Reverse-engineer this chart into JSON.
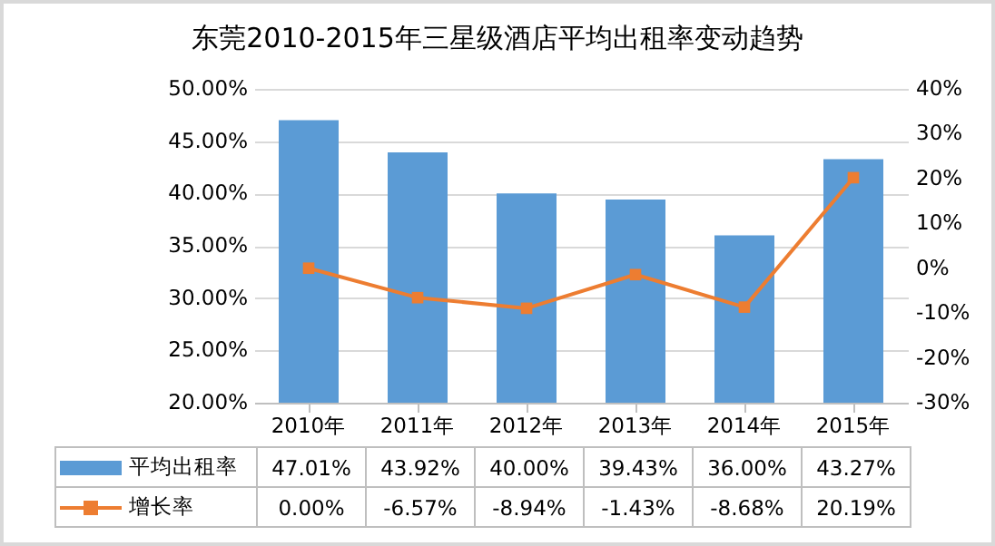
{
  "chart_data": {
    "type": "bar",
    "title": "东莞2010-2015年三星级酒店平均出租率变动趋势",
    "categories": [
      "2010年",
      "2011年",
      "2012年",
      "2013年",
      "2014年",
      "2015年"
    ],
    "series": [
      {
        "name": "平均出租率",
        "color": "#5b9bd5",
        "values": [
          47.01,
          43.92,
          40.0,
          39.43,
          36.0,
          43.27
        ],
        "value_labels": [
          "47.01%",
          "43.92%",
          "40.00%",
          "39.43%",
          "36.00%",
          "43.27%"
        ]
      },
      {
        "name": "增长率",
        "type": "line",
        "axis": "y2",
        "color": "#ed7d31",
        "marker": "square",
        "values": [
          0.0,
          -6.57,
          -8.94,
          -1.43,
          -8.68,
          20.19
        ],
        "value_labels": [
          "0.00%",
          "-6.57%",
          "-8.94%",
          "-1.43%",
          "-8.68%",
          "20.19%"
        ]
      }
    ],
    "ylim": [
      20,
      50
    ],
    "yticks": [
      {
        "value": 20,
        "label": "20.00%"
      },
      {
        "value": 25,
        "label": "25.00%"
      },
      {
        "value": 30,
        "label": "30.00%"
      },
      {
        "value": 35,
        "label": "35.00%"
      },
      {
        "value": 40,
        "label": "40.00%"
      },
      {
        "value": 45,
        "label": "45.00%"
      },
      {
        "value": 50,
        "label": "50.00%"
      }
    ],
    "y2lim": [
      -30,
      40
    ],
    "y2ticks": [
      {
        "value": -30,
        "label": "-30%"
      },
      {
        "value": -20,
        "label": "-20%"
      },
      {
        "value": -10,
        "label": "-10%"
      },
      {
        "value": 0,
        "label": "0%"
      },
      {
        "value": 10,
        "label": "10%"
      },
      {
        "value": 20,
        "label": "20%"
      },
      {
        "value": 30,
        "label": "30%"
      },
      {
        "value": 40,
        "label": "40%"
      }
    ],
    "grid": "y",
    "legend": "bottom left"
  }
}
